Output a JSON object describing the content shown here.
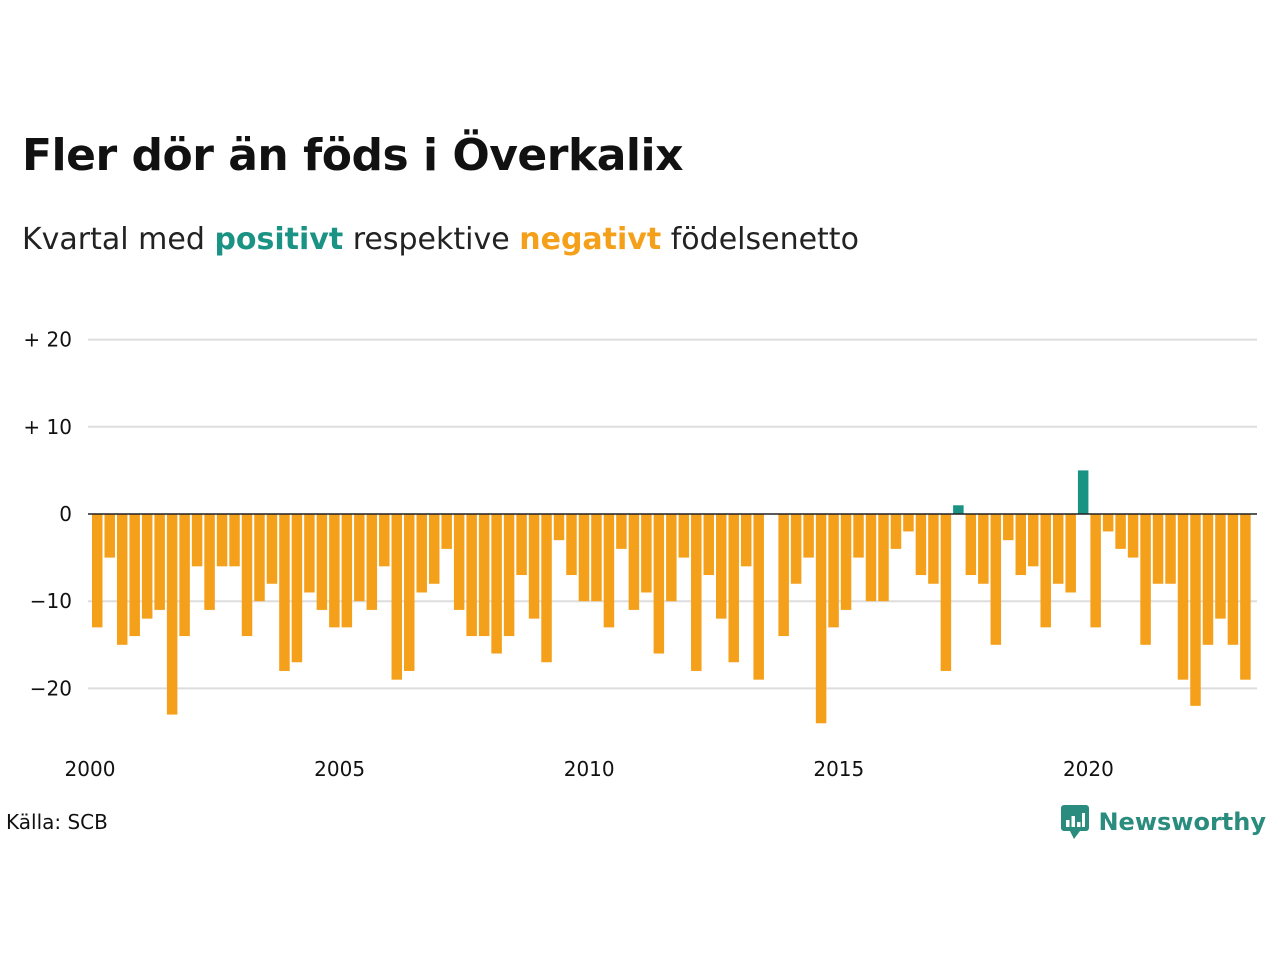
{
  "title": "Fler dör än föds i Överkalix",
  "subtitle": {
    "prefix": "Kvartal med",
    "positive": "positivt",
    "middle": "respektive",
    "negative": "negativt",
    "suffix": "födelsenetto"
  },
  "source": "Källa: SCB",
  "brand": "Newsworthy",
  "colors": {
    "positive": "#1a9384",
    "negative": "#f5a01a",
    "grid": "#dddddd"
  },
  "chart_data": {
    "type": "bar",
    "title": "Fler dör än föds i Överkalix",
    "xlabel": "",
    "ylabel": "",
    "ylim": [
      -25,
      20
    ],
    "y_ticks": [
      {
        "value": 20,
        "label": "+ 20"
      },
      {
        "value": 10,
        "label": "+ 10"
      },
      {
        "value": 0,
        "label": "0"
      },
      {
        "value": -10,
        "label": "−10"
      },
      {
        "value": -20,
        "label": "−20"
      }
    ],
    "x_ticks": [
      {
        "index": 0,
        "label": "2000"
      },
      {
        "index": 20,
        "label": "2005"
      },
      {
        "index": 40,
        "label": "2010"
      },
      {
        "index": 60,
        "label": "2015"
      },
      {
        "index": 80,
        "label": "2020"
      }
    ],
    "start": "2000 Q1",
    "frequency": "quarter",
    "values": [
      -13,
      -5,
      -15,
      -14,
      -12,
      -11,
      -23,
      -14,
      -6,
      -11,
      -6,
      -6,
      -14,
      -10,
      -8,
      -18,
      -17,
      -9,
      -11,
      -13,
      -13,
      -10,
      -11,
      -6,
      -19,
      -18,
      -9,
      -8,
      -4,
      -11,
      -14,
      -14,
      -16,
      -14,
      -7,
      -12,
      -17,
      -3,
      -7,
      -10,
      -10,
      -13,
      -4,
      -11,
      -9,
      -16,
      -10,
      -5,
      -18,
      -7,
      -12,
      -17,
      -6,
      -19,
      0,
      -14,
      -8,
      -5,
      -24,
      -13,
      -11,
      -5,
      -10,
      -10,
      -4,
      -2,
      -7,
      -8,
      -18,
      1,
      -7,
      -8,
      -15,
      -3,
      -7,
      -6,
      -13,
      -8,
      -9,
      5,
      -13,
      -2,
      -4,
      -5,
      -15,
      -8,
      -8,
      -19,
      -22,
      -15,
      -12,
      -15,
      -19
    ],
    "grid": true
  }
}
